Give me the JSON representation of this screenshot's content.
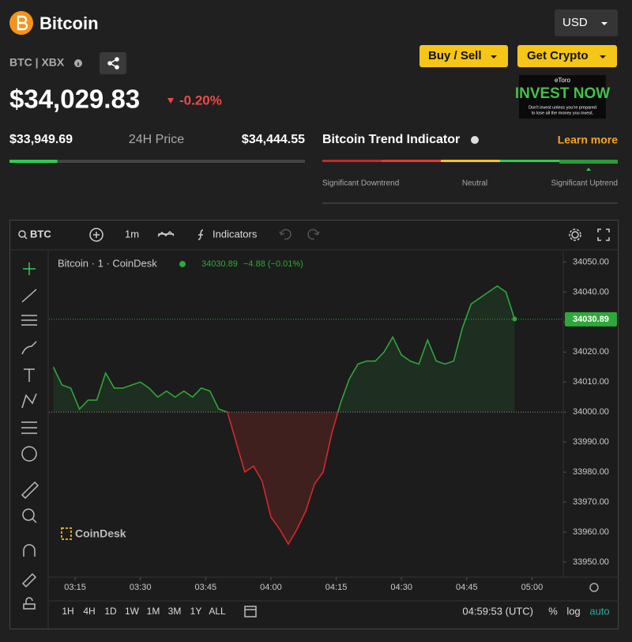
{
  "header": {
    "title": "Bitcoin",
    "currency": "USD",
    "ticker": "BTC | XBX",
    "buttons": [
      "Buy / Sell",
      "Get Crypto"
    ]
  },
  "ad": {
    "brand": "eToro",
    "headline": "INVEST NOW",
    "disclaimer": [
      "Don't invest unless you're prepared",
      "to lose all the money you invest."
    ]
  },
  "price": {
    "value": "$34,029.83",
    "change": "-0.20%"
  },
  "range_24h": {
    "low": "$33,949.69",
    "label": "24H Price",
    "high": "$34,444.55"
  },
  "trend": {
    "title": "Bitcoin Trend Indicator",
    "link": "Learn more",
    "labels": [
      "Significant Downtrend",
      "Neutral",
      "Significant Uptrend"
    ]
  },
  "toolbar": {
    "symbol": "BTC",
    "interval": "1m",
    "indicators": "Indicators"
  },
  "chart_data": {
    "type": "line",
    "last_value": "34030.89",
    "last_change": "−4.88 (−0.01%)",
    "watermark": "CoinDesk",
    "x": [
      "03:10",
      "03:12",
      "03:14",
      "03:16",
      "03:18",
      "03:20",
      "03:22",
      "03:24",
      "03:26",
      "03:28",
      "03:30",
      "03:32",
      "03:34",
      "03:36",
      "03:38",
      "03:40",
      "03:42",
      "03:44",
      "03:46",
      "03:48",
      "03:50",
      "03:52",
      "03:54",
      "03:56",
      "03:58",
      "04:00",
      "04:02",
      "04:04",
      "04:06",
      "04:08",
      "04:10",
      "04:12",
      "04:14",
      "04:16",
      "04:18",
      "04:20",
      "04:22",
      "04:24",
      "04:26",
      "04:28",
      "04:30",
      "04:32",
      "04:34",
      "04:36",
      "04:38",
      "04:40",
      "04:42",
      "04:44",
      "04:46",
      "04:48",
      "04:50",
      "04:52",
      "04:54",
      "04:56"
    ],
    "series": [
      {
        "name": "Bitcoin · 1 · CoinDesk",
        "color": "#2ea83a",
        "down_color": "#d42b2b",
        "values": [
          34015,
          34009,
          34008,
          34001,
          34004,
          34004,
          34013,
          34008,
          34008,
          34009,
          34010,
          34008,
          34005,
          34007,
          34005,
          34007,
          34005,
          34008,
          34007,
          34001,
          34000,
          33990,
          33980,
          33982,
          33977,
          33965,
          33961,
          33956,
          33961,
          33967,
          33976,
          33980,
          33993,
          34003,
          34011,
          34016,
          34017,
          34017,
          34020,
          34025,
          34019,
          34017,
          34016,
          34024,
          34017,
          34016,
          34017,
          34028,
          34036,
          34038,
          34040,
          34042,
          34040,
          34031
        ]
      }
    ],
    "baseline": 34000,
    "last_price": {
      "value": 34030.89,
      "label": "34030.89"
    },
    "ylim": [
      33945,
      34053
    ],
    "yticks": [
      {
        "value": 33950,
        "label": "33950.00"
      },
      {
        "value": 33960,
        "label": "33960.00"
      },
      {
        "value": 33970,
        "label": "33970.00"
      },
      {
        "value": 33980,
        "label": "33980.00"
      },
      {
        "value": 33990,
        "label": "33990.00"
      },
      {
        "value": 34000,
        "label": "34000.00"
      },
      {
        "value": 34010,
        "label": "34010.00"
      },
      {
        "value": 34020,
        "label": "34020.00"
      },
      {
        "value": 34030,
        "label": "34030.00"
      },
      {
        "value": 34040,
        "label": "34040.00"
      },
      {
        "value": 34050,
        "label": "34050.00"
      }
    ],
    "xlim": [
      "03:09",
      "05:07"
    ],
    "xticks": [
      "03:15",
      "03:30",
      "03:45",
      "04:00",
      "04:15",
      "04:30",
      "04:45",
      "05:00"
    ]
  },
  "footer": {
    "ranges": [
      "1H",
      "4H",
      "1D",
      "1W",
      "1M",
      "3M",
      "1Y",
      "ALL"
    ],
    "time": "04:59:53 (UTC)",
    "options": [
      "%",
      "log",
      "auto"
    ]
  }
}
